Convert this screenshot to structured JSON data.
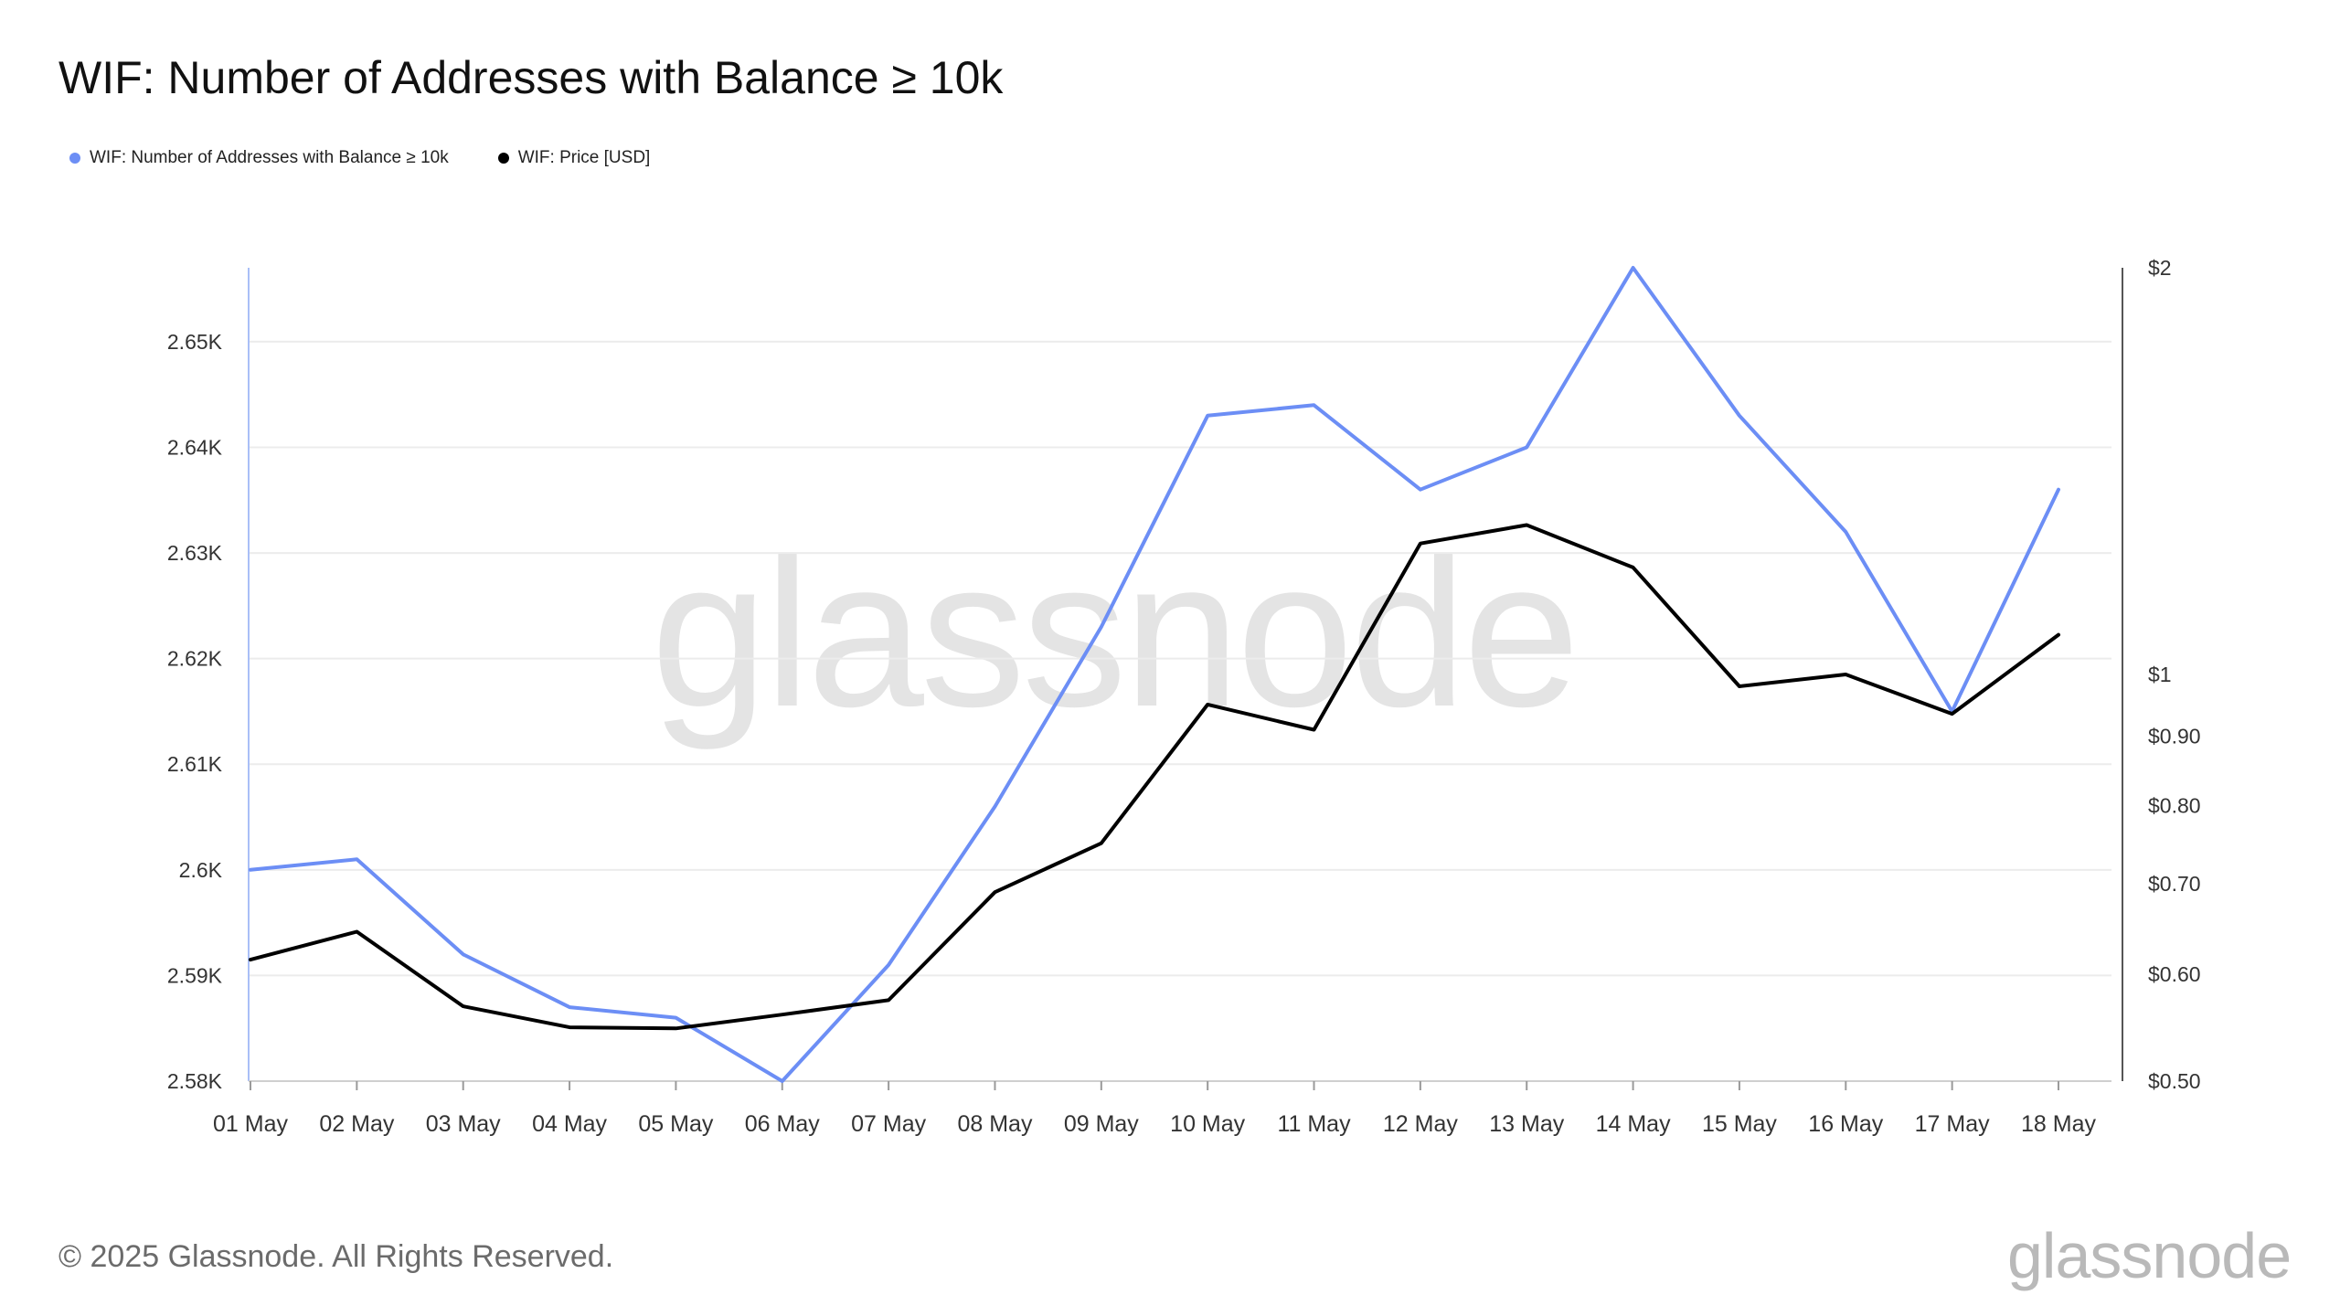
{
  "title": "WIF: Number of Addresses with Balance ≥ 10k",
  "legend": [
    {
      "label": "WIF: Number of Addresses with Balance ≥ 10k",
      "color": "#6c8ef5"
    },
    {
      "label": "WIF: Price [USD]",
      "color": "#000000"
    }
  ],
  "watermark": "glassnode",
  "footer": "© 2025 Glassnode. All Rights Reserved.",
  "brand": "glassnode",
  "chart_data": {
    "type": "line",
    "title": "WIF: Number of Addresses with Balance ≥ 10k",
    "categories": [
      "01 May",
      "02 May",
      "03 May",
      "04 May",
      "05 May",
      "06 May",
      "07 May",
      "08 May",
      "09 May",
      "10 May",
      "11 May",
      "12 May",
      "13 May",
      "14 May",
      "15 May",
      "16 May",
      "17 May",
      "18 May"
    ],
    "series": [
      {
        "name": "WIF: Number of Addresses with Balance ≥ 10k",
        "axis": "left",
        "color": "#6c8ef5",
        "values": [
          2600,
          2601,
          2592,
          2587,
          2586,
          2580,
          2591,
          2606,
          2623,
          2643,
          2644,
          2636,
          2640,
          2657,
          2643,
          2632,
          2615,
          2636
        ]
      },
      {
        "name": "WIF: Price [USD]",
        "axis": "right",
        "color": "#000000",
        "values": [
          0.615,
          0.645,
          0.568,
          0.548,
          0.547,
          0.56,
          0.574,
          0.69,
          0.75,
          0.95,
          0.91,
          1.25,
          1.29,
          1.2,
          0.98,
          1.0,
          0.935,
          1.07
        ]
      }
    ],
    "left_axis": {
      "ylim": [
        2580,
        2657
      ],
      "ticks": [
        2580,
        2590,
        2600,
        2610,
        2620,
        2630,
        2640,
        2650
      ],
      "tick_labels": [
        "2.58K",
        "2.59K",
        "2.6K",
        "2.61K",
        "2.62K",
        "2.63K",
        "2.64K",
        "2.65K"
      ]
    },
    "right_axis": {
      "scale": "log",
      "ylim": [
        0.5,
        2
      ],
      "ticks": [
        0.5,
        0.6,
        0.7,
        0.8,
        0.9,
        1,
        2
      ],
      "tick_labels": [
        "$0.50",
        "$0.60",
        "$0.70",
        "$0.80",
        "$0.90",
        "$1",
        "$2"
      ]
    },
    "grid": true,
    "legend_position": "top-left"
  }
}
